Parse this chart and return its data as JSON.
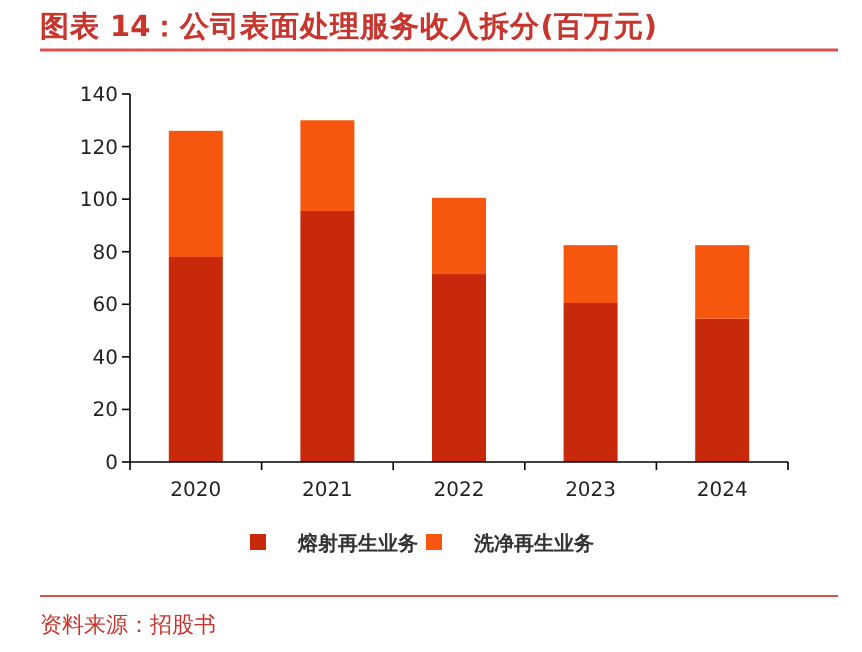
{
  "chart_data": {
    "type": "bar",
    "title": "图表 14：公司表面处理服务收入拆分(百万元)",
    "categories": [
      "2020",
      "2021",
      "2022",
      "2023",
      "2024"
    ],
    "series": [
      {
        "name": "熔射再生业务",
        "color": "#c8290a",
        "values": [
          78,
          95.5,
          71.5,
          60.5,
          54.5
        ]
      },
      {
        "name": "洗净再生业务",
        "color": "#f7560f",
        "values": [
          48,
          34.5,
          29,
          22,
          28
        ]
      }
    ],
    "stacked": true,
    "ylim": [
      0,
      140
    ],
    "yticks": [
      0,
      20,
      40,
      60,
      80,
      100,
      120,
      140
    ],
    "legend": "bottom",
    "annotations": [
      "资料来源：招股书"
    ]
  }
}
